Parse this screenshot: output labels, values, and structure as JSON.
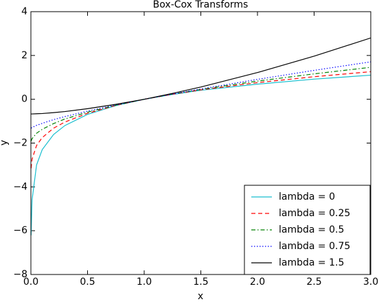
{
  "chart_data": {
    "type": "line",
    "title": "Box-Cox Transforms",
    "x_label": "x",
    "y_label": "y",
    "x": [
      0.002,
      0.01,
      0.05,
      0.1,
      0.2,
      0.3,
      0.5,
      0.75,
      1,
      1.25,
      1.5,
      2,
      2.5,
      3
    ],
    "series": [
      {
        "name": "lambda = 0",
        "color": "#17becf",
        "linestyle": "solid",
        "values": [
          -6.21,
          -4.61,
          -3.0,
          -2.3,
          -1.61,
          -1.2,
          -0.69,
          -0.29,
          0,
          0.22,
          0.41,
          0.69,
          0.92,
          1.1
        ]
      },
      {
        "name": "lambda = 0.25",
        "color": "#ff0000",
        "linestyle": "dashed",
        "values": [
          -3.15,
          -2.74,
          -2.11,
          -1.75,
          -1.32,
          -1.04,
          -0.64,
          -0.28,
          0,
          0.23,
          0.43,
          0.76,
          1.03,
          1.26
        ]
      },
      {
        "name": "lambda = 0.5",
        "color": "#008000",
        "linestyle": "dashdot",
        "values": [
          -1.91,
          -1.8,
          -1.55,
          -1.37,
          -1.11,
          -0.9,
          -0.59,
          -0.27,
          0,
          0.24,
          0.45,
          0.83,
          1.16,
          1.46
        ]
      },
      {
        "name": "lambda = 0.75",
        "color": "#0000ff",
        "linestyle": "dotted",
        "values": [
          -1.32,
          -1.29,
          -1.19,
          -1.1,
          -0.93,
          -0.79,
          -0.54,
          -0.26,
          0,
          0.24,
          0.47,
          0.91,
          1.32,
          1.71
        ]
      },
      {
        "name": "lambda = 1.5",
        "color": "#000000",
        "linestyle": "solid",
        "values": [
          -0.67,
          -0.67,
          -0.66,
          -0.65,
          -0.61,
          -0.56,
          -0.43,
          -0.23,
          0,
          0.27,
          0.56,
          1.22,
          1.97,
          2.8
        ]
      }
    ],
    "xlim": [
      0,
      3
    ],
    "xticks": [
      {
        "value": 0,
        "label": "0.0"
      },
      {
        "value": 0.5,
        "label": "0.5"
      },
      {
        "value": 1,
        "label": "1.0"
      },
      {
        "value": 1.5,
        "label": "1.5"
      },
      {
        "value": 2,
        "label": "2.0"
      },
      {
        "value": 2.5,
        "label": "2.5"
      },
      {
        "value": 3,
        "label": "3.0"
      }
    ],
    "ylim": [
      -8,
      4
    ],
    "yticks": [
      {
        "value": -8,
        "label": "−8"
      },
      {
        "value": -6,
        "label": "−6"
      },
      {
        "value": -4,
        "label": "−4"
      },
      {
        "value": -2,
        "label": "−2"
      },
      0,
      2,
      4
    ],
    "legend": "lower right"
  }
}
